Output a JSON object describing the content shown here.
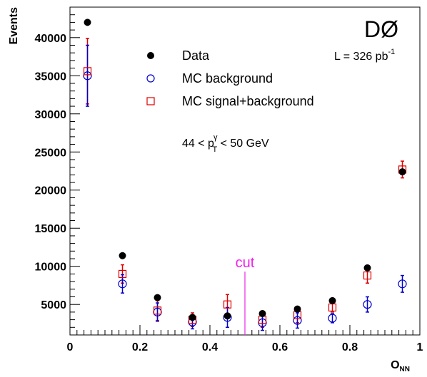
{
  "chart_data": {
    "type": "scatter",
    "title": "",
    "experiment_label": "DØ",
    "luminosity_label": "L = 326 pb",
    "luminosity_exponent": "-1",
    "kinematic_label": {
      "prefix": "44 < p",
      "sup": "γ",
      "sub": "T",
      "suffix": " < 50 GeV"
    },
    "xlabel": {
      "main": "O",
      "sub": "NN"
    },
    "ylabel": "Events",
    "xlim": [
      0,
      1
    ],
    "ylim": [
      1000,
      44000
    ],
    "xticks": [
      0,
      0.2,
      0.4,
      0.6,
      0.8,
      1
    ],
    "xtick_labels": [
      "0",
      "0.2",
      "0.4",
      "0.6",
      "0.8",
      "1"
    ],
    "yticks": [
      5000,
      10000,
      15000,
      20000,
      25000,
      30000,
      35000,
      40000
    ],
    "ytick_labels": [
      "5000",
      "10000",
      "15000",
      "20000",
      "25000",
      "30000",
      "35000",
      "40000"
    ],
    "grid": false,
    "legend_position": "top-center",
    "cut": {
      "x": 0.5,
      "y_top": 9300,
      "label": "cut",
      "color": "#ee22ee"
    },
    "x": [
      0.05,
      0.15,
      0.25,
      0.35,
      0.45,
      0.55,
      0.65,
      0.75,
      0.85,
      0.95
    ],
    "series": [
      {
        "name": "Data",
        "marker": "filled-circle",
        "color": "#000000",
        "values": [
          42000,
          11400,
          5900,
          3300,
          3500,
          3800,
          4400,
          5500,
          9800,
          22400
        ]
      },
      {
        "name": "MC background",
        "marker": "open-circle",
        "color": "#0000cc",
        "values": [
          35000,
          7700,
          4000,
          2700,
          3300,
          2600,
          2900,
          3200,
          5000,
          7700
        ],
        "errors": [
          4000,
          1200,
          1200,
          900,
          1300,
          1000,
          1000,
          600,
          1000,
          1100
        ]
      },
      {
        "name": "MC signal+background",
        "marker": "open-square",
        "color": "#dd0000",
        "values": [
          35600,
          9000,
          4200,
          3000,
          5000,
          3000,
          3600,
          4600,
          8800,
          22700
        ],
        "errors": [
          4300,
          1200,
          1300,
          900,
          1300,
          1000,
          1000,
          600,
          1000,
          1100
        ]
      }
    ]
  }
}
